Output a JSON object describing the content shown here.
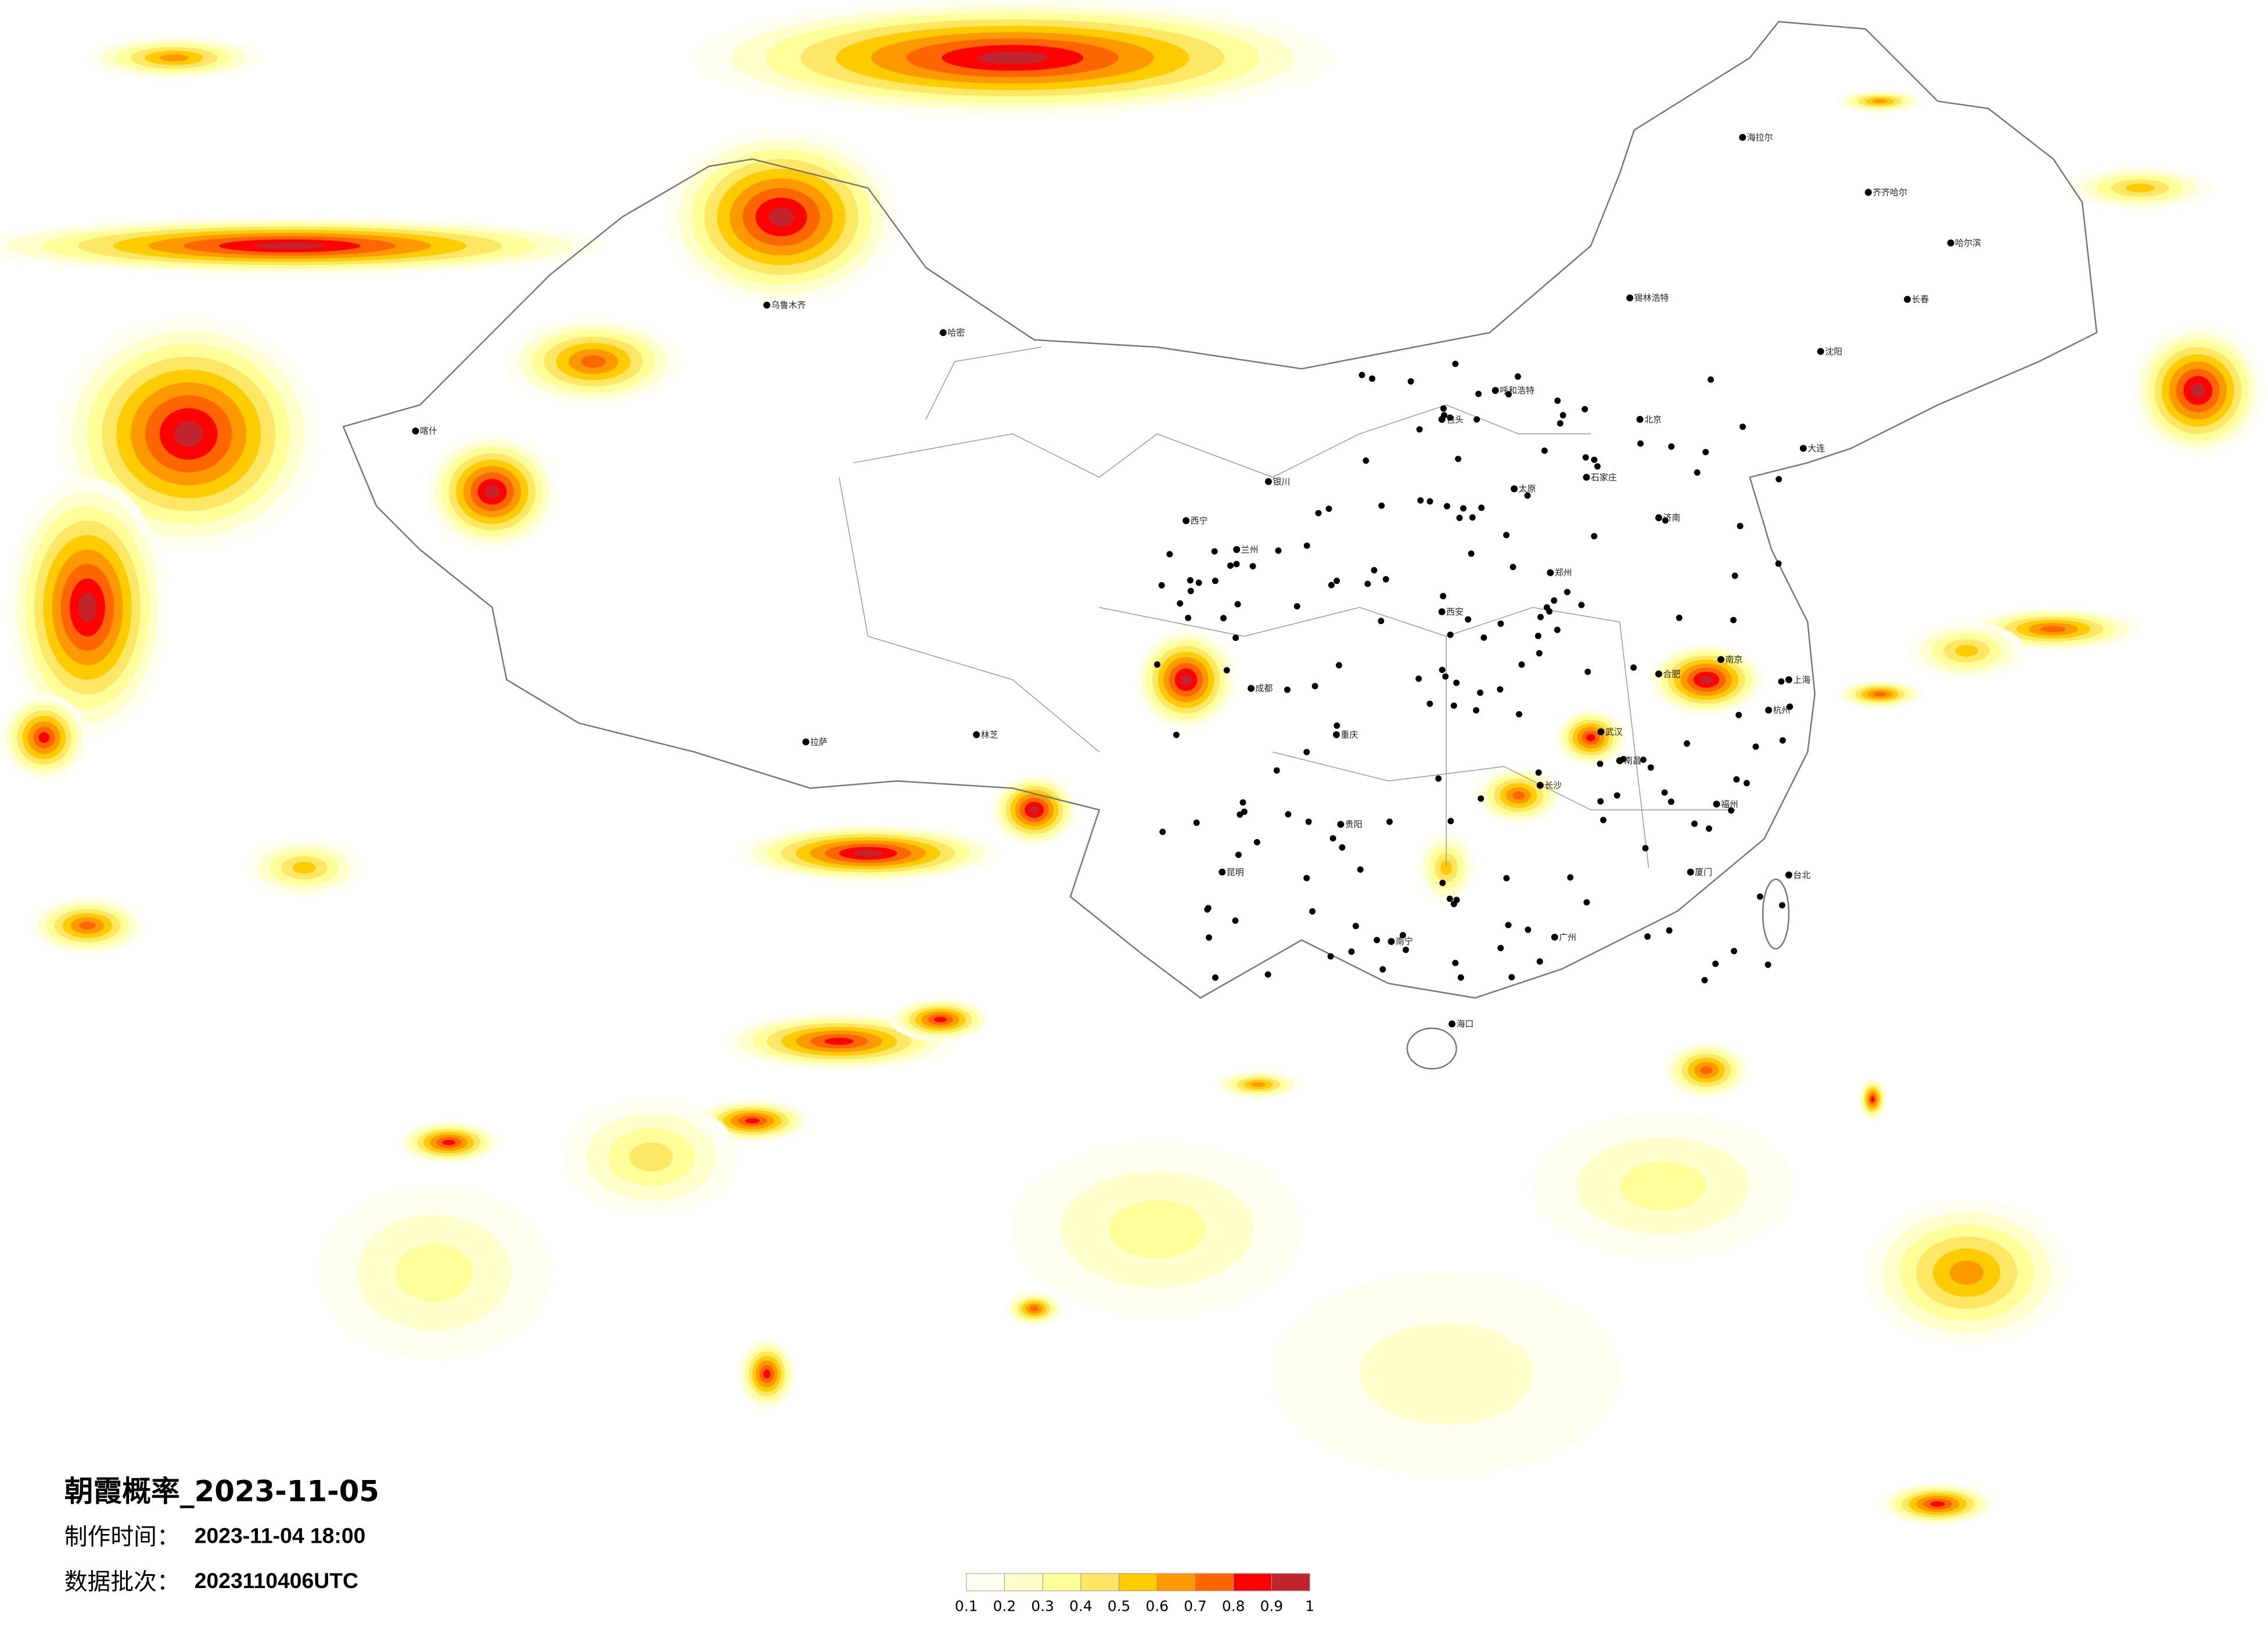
{
  "title": "朝霞概率_2023-11-05",
  "production_time": {
    "label": "制作时间：",
    "value": "2023-11-04 18:00"
  },
  "data_batch": {
    "label": "数据批次：",
    "value": "2023110406UTC"
  },
  "legend": {
    "ticks": [
      "0.1",
      "0.2",
      "0.3",
      "0.4",
      "0.5",
      "0.6",
      "0.7",
      "0.8",
      "0.9",
      "1"
    ],
    "colors": [
      "#fffff0",
      "#ffffcc",
      "#ffff99",
      "#ffe766",
      "#ffcc00",
      "#ff9900",
      "#ff6600",
      "#ff0000",
      "#c0242c"
    ]
  },
  "map": {
    "cities": [
      "北京",
      "上海",
      "广州",
      "哈尔滨",
      "乌鲁木齐",
      "拉萨",
      "成都",
      "武汉",
      "西安",
      "兰州",
      "呼和浩特",
      "沈阳",
      "长春",
      "昆明",
      "南宁",
      "海口",
      "台北",
      "济南",
      "郑州",
      "杭州",
      "福州",
      "长沙",
      "贵阳",
      "重庆",
      "西宁",
      "银川",
      "太原",
      "石家庄",
      "南京",
      "合肥",
      "南昌",
      "喀什",
      "哈密",
      "林芝",
      "海拉尔",
      "齐齐哈尔",
      "锡林浩特",
      "包头",
      "大连",
      "厦门"
    ]
  }
}
